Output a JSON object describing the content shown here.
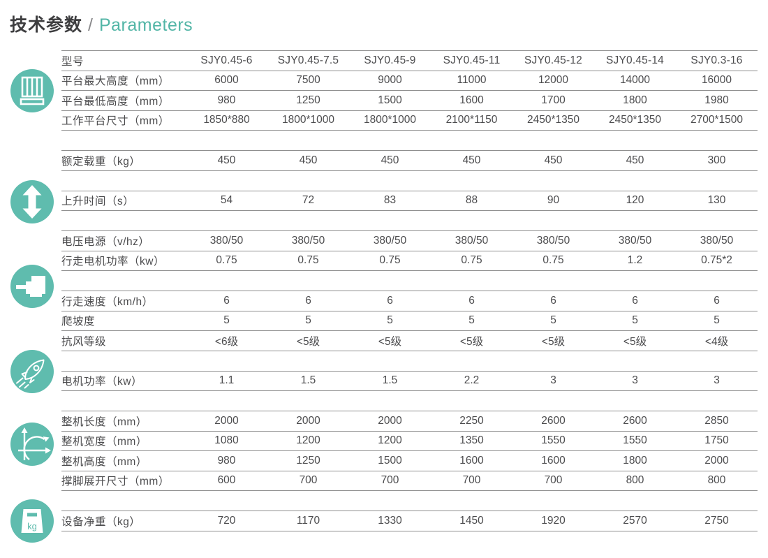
{
  "page": {
    "title_cn": "技术参数",
    "title_sep": "/",
    "title_en": "Parameters"
  },
  "colors": {
    "accent_teal": "#52b5a6",
    "icon_teal": "#5fbcae",
    "title_dark": "#3d3d3f",
    "table_text": "#4c4c4e",
    "line_gray": "#8f8f8f"
  },
  "icons": {
    "kg_label": "kg",
    "names": [
      "platform-railing-icon",
      "updown-arrow-icon",
      "motor-icon",
      "rocket-icon",
      "dimension-axes-icon",
      "weight-kg-icon"
    ]
  },
  "table": {
    "header": {
      "label": "型号",
      "models": [
        "SJY0.45-6",
        "SJY0.45-7.5",
        "SJY0.45-9",
        "SJY0.45-11",
        "SJY0.45-12",
        "SJY0.45-14",
        "SJY0.3-16"
      ]
    },
    "groups": [
      {
        "rows": [
          {
            "label": "平台最大高度（mm）",
            "values": [
              "6000",
              "7500",
              "9000",
              "11000",
              "12000",
              "14000",
              "16000"
            ]
          },
          {
            "label": "平台最低高度（mm）",
            "values": [
              "980",
              "1250",
              "1500",
              "1600",
              "1700",
              "1800",
              "1980"
            ]
          },
          {
            "label": "工作平台尺寸（mm）",
            "values": [
              "1850*880",
              "1800*1000",
              "1800*1000",
              "2100*1150",
              "2450*1350",
              "2450*1350",
              "2700*1500"
            ]
          }
        ]
      },
      {
        "rows": [
          {
            "label": "额定载重（kg）",
            "values": [
              "450",
              "450",
              "450",
              "450",
              "450",
              "450",
              "300"
            ]
          }
        ]
      },
      {
        "rows": [
          {
            "label": "上升时间（s）",
            "values": [
              "54",
              "72",
              "83",
              "88",
              "90",
              "120",
              "130"
            ]
          }
        ]
      },
      {
        "rows": [
          {
            "label": "电压电源（v/hz）",
            "values": [
              "380/50",
              "380/50",
              "380/50",
              "380/50",
              "380/50",
              "380/50",
              "380/50"
            ]
          },
          {
            "label": "行走电机功率（kw）",
            "values": [
              "0.75",
              "0.75",
              "0.75",
              "0.75",
              "0.75",
              "1.2",
              "0.75*2"
            ]
          }
        ]
      },
      {
        "rows": [
          {
            "label": "行走速度（km/h）",
            "values": [
              "6",
              "6",
              "6",
              "6",
              "6",
              "6",
              "6"
            ]
          },
          {
            "label": "爬坡度",
            "values": [
              "5",
              "5",
              "5",
              "5",
              "5",
              "5",
              "5"
            ]
          },
          {
            "label": "抗风等级",
            "values": [
              "<6级",
              "<5级",
              "<5级",
              "<5级",
              "<5级",
              "<5级",
              "<4级"
            ]
          }
        ]
      },
      {
        "rows": [
          {
            "label": "电机功率（kw）",
            "values": [
              "1.1",
              "1.5",
              "1.5",
              "2.2",
              "3",
              "3",
              "3"
            ]
          }
        ]
      },
      {
        "rows": [
          {
            "label": "整机长度（mm）",
            "values": [
              "2000",
              "2000",
              "2000",
              "2250",
              "2600",
              "2600",
              "2850"
            ]
          },
          {
            "label": "整机宽度（mm）",
            "values": [
              "1080",
              "1200",
              "1200",
              "1350",
              "1550",
              "1550",
              "1750"
            ]
          },
          {
            "label": "整机高度（mm）",
            "values": [
              "980",
              "1250",
              "1500",
              "1600",
              "1600",
              "1800",
              "2000"
            ]
          },
          {
            "label": "撑脚展开尺寸（mm）",
            "values": [
              "600",
              "700",
              "700",
              "700",
              "700",
              "800",
              "800"
            ]
          }
        ]
      },
      {
        "rows": [
          {
            "label": "设备净重（kg）",
            "values": [
              "720",
              "1170",
              "1330",
              "1450",
              "1920",
              "2570",
              "2750"
            ]
          }
        ]
      }
    ]
  }
}
